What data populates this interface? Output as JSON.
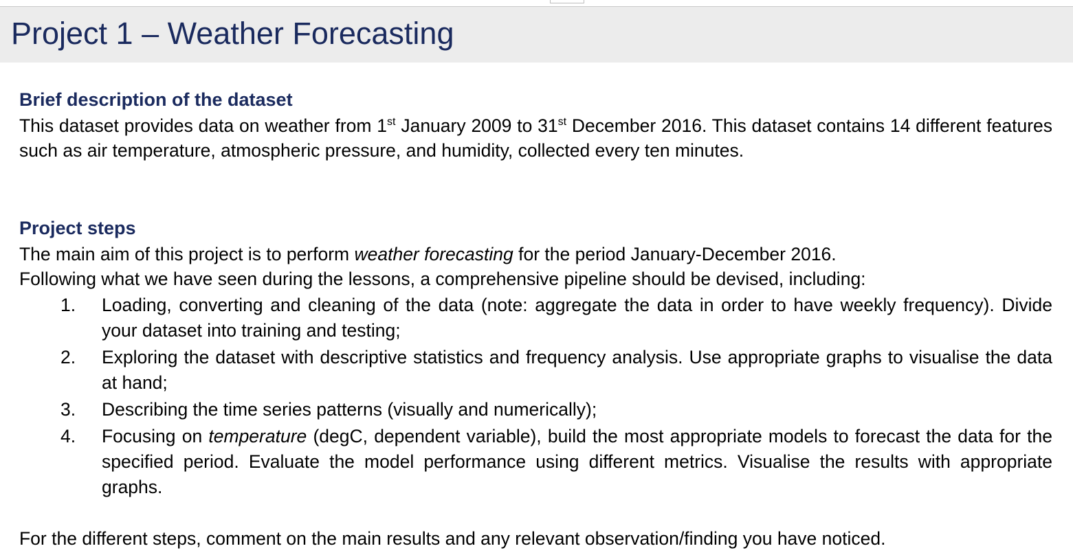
{
  "document": {
    "title": "Project 1 – Weather Forecasting",
    "sections": {
      "dataset": {
        "heading": "Brief description of the dataset",
        "text_part1": "This dataset provides data on weather from 1",
        "sup1": "st",
        "text_part2": " January 2009 to 31",
        "sup2": "st",
        "text_part3": " December 2016. This dataset contains 14 different features such as air temperature, atmospheric pressure, and humidity, collected every ten minutes."
      },
      "project_steps": {
        "heading": "Project steps",
        "aim_part1": "The main aim of this project is to perform ",
        "aim_italic": "weather forecasting",
        "aim_part2": " for the period January-December 2016.",
        "pipeline_intro": "Following what we have seen during the lessons, a comprehensive pipeline should be devised, including:",
        "steps": [
          {
            "number": "1.",
            "text": "Loading, converting and cleaning of the data (note: aggregate the data in order to have weekly frequency). Divide your dataset into training and testing;"
          },
          {
            "number": "2.",
            "text": "Exploring the dataset with descriptive statistics and frequency analysis. Use appropriate graphs to visualise the data at hand;"
          },
          {
            "number": "3.",
            "text": "Describing the time series patterns (visually and numerically);"
          },
          {
            "number": "4.",
            "text_part1": "Focusing on ",
            "text_italic": "temperature",
            "text_part2": " (degC, dependent variable), build the most appropriate models to forecast the data for the specified period. Evaluate the model performance using different metrics. Visualise the results with appropriate graphs."
          }
        ],
        "closing": "For the different steps, comment on the main results and any relevant observation/finding you have noticed."
      }
    }
  }
}
